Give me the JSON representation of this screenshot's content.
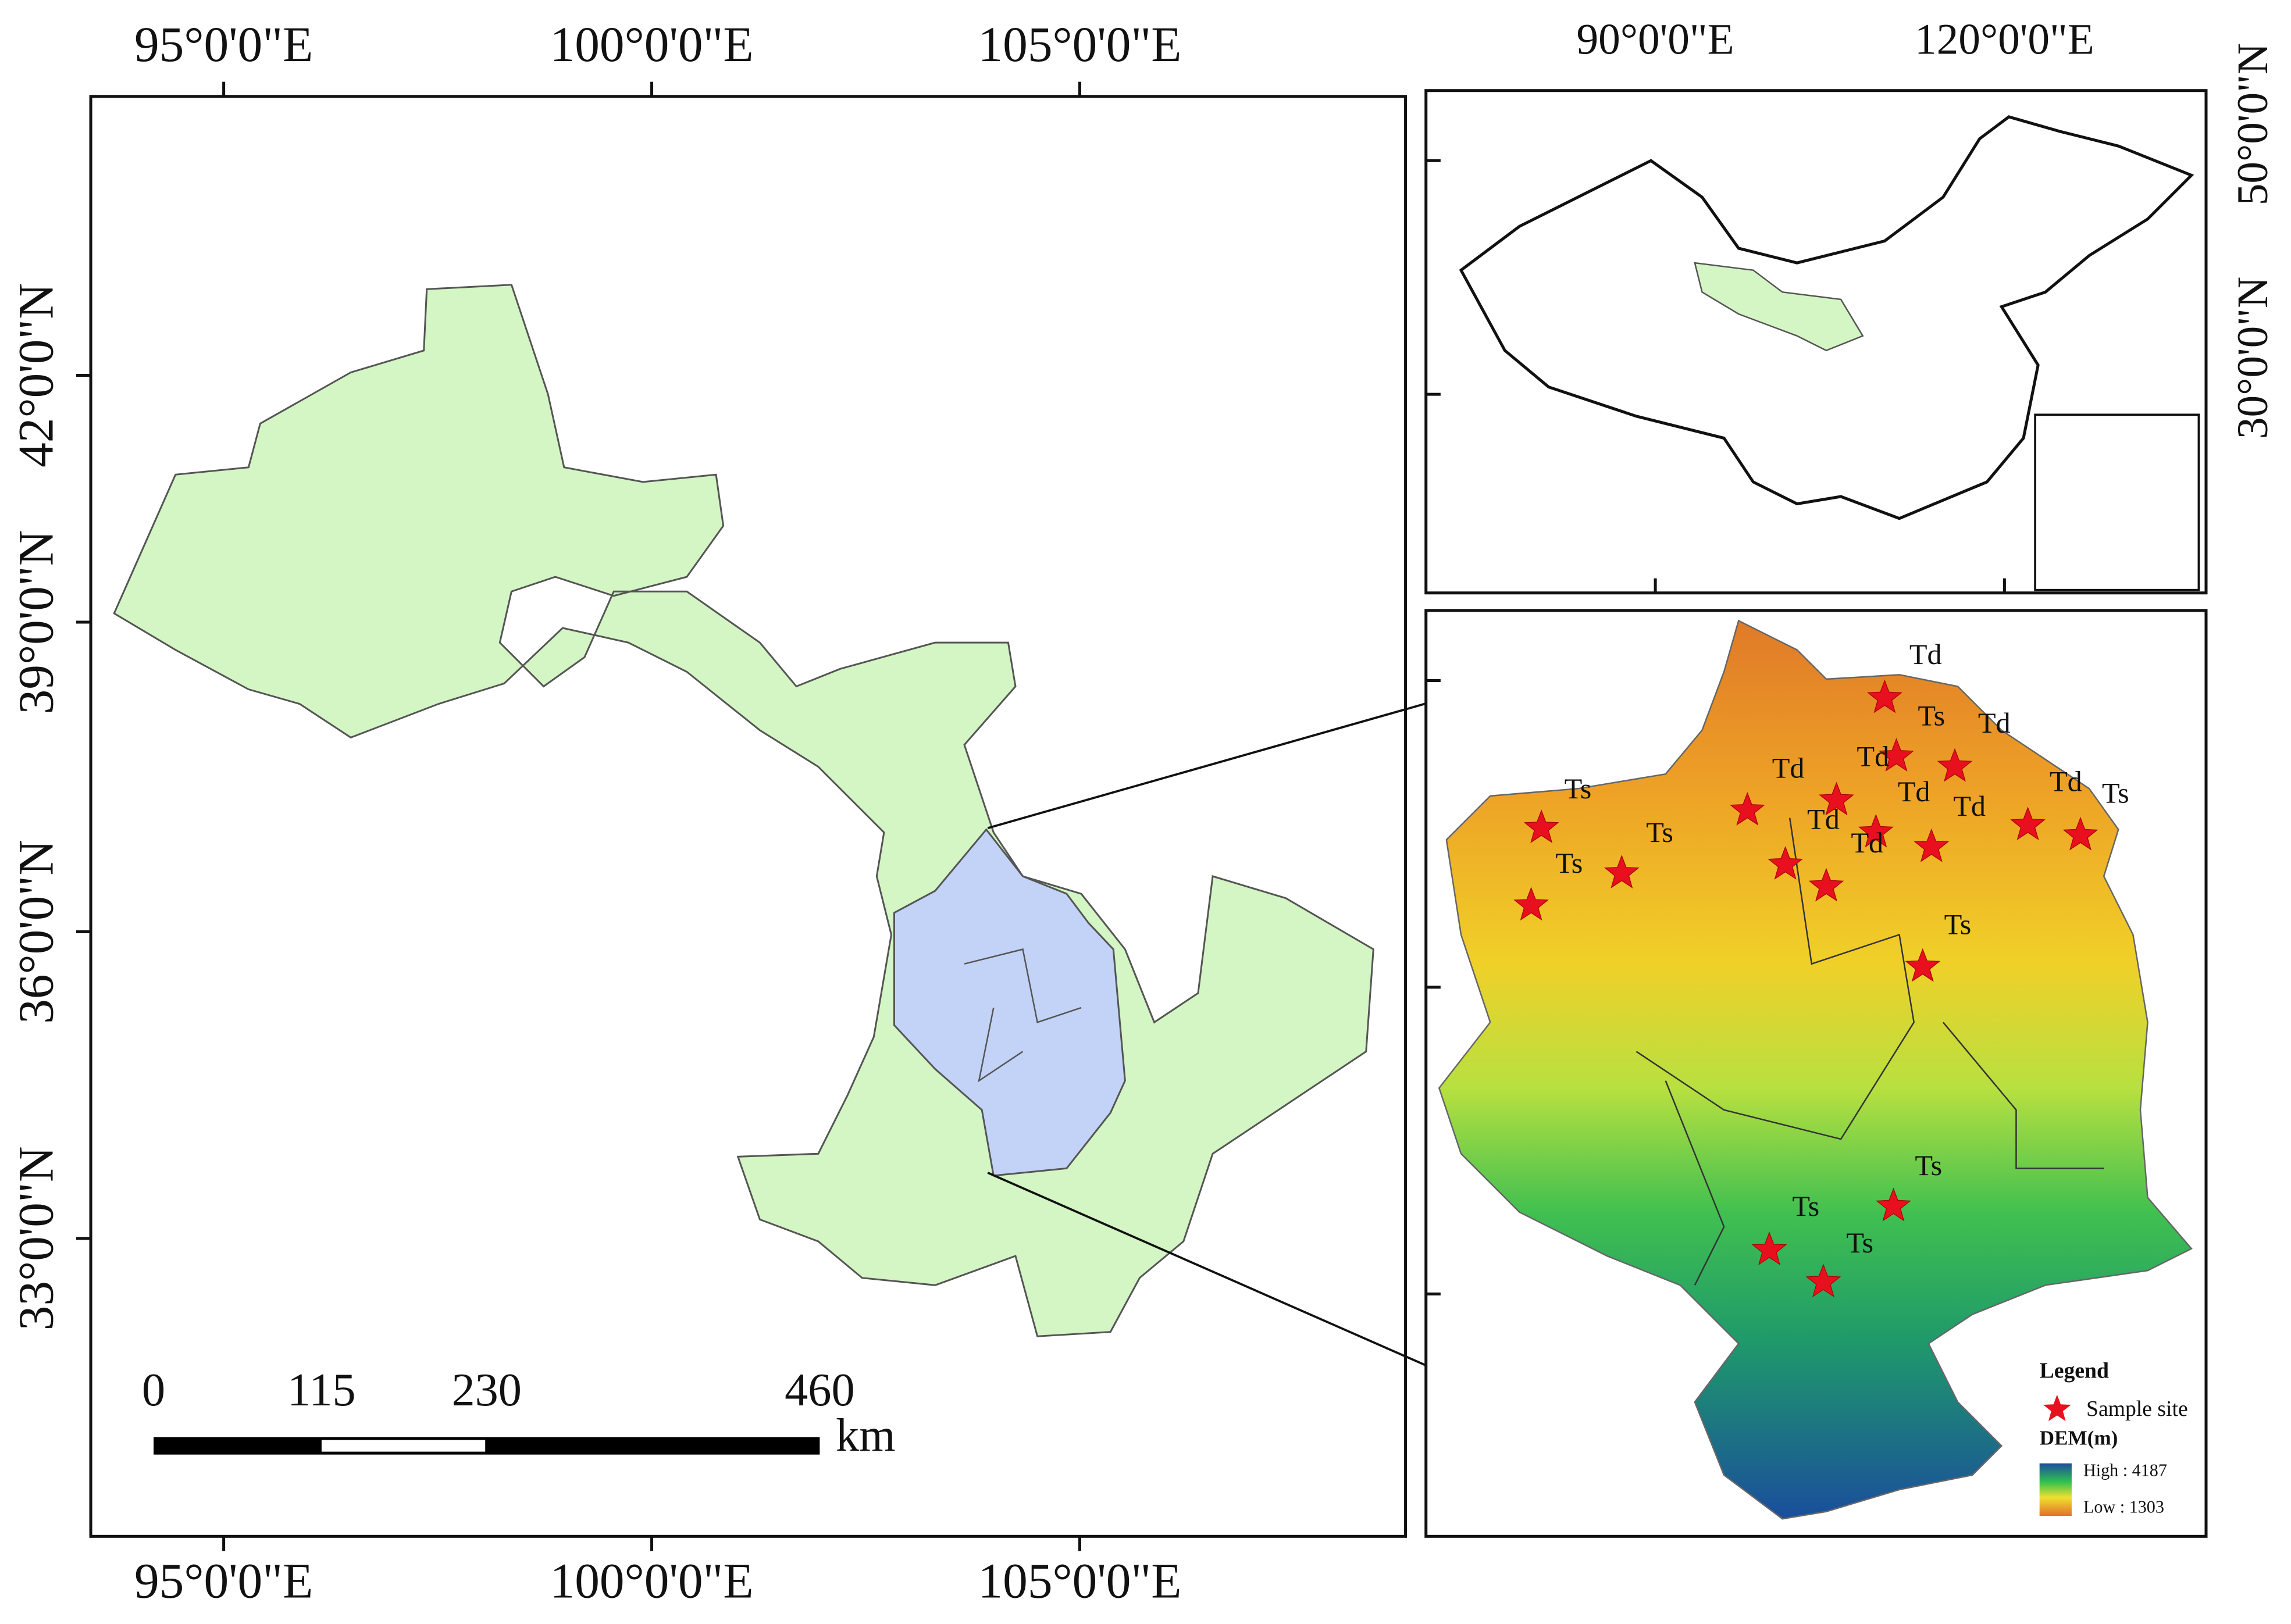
{
  "main_map": {
    "top_labels": [
      "95°0'0\"E",
      "100°0'0\"E",
      "105°0'0\"E"
    ],
    "bottom_labels": [
      "95°0'0\"E",
      "100°0'0\"E",
      "105°0'0\"E"
    ],
    "left_labels": [
      "42°0'0\"N",
      "39°0'0\"N",
      "36°0'0\"N",
      "33°0'0\"N"
    ]
  },
  "scale_bar": {
    "ticks": [
      "0",
      "115",
      "230",
      "460"
    ],
    "unit": "km"
  },
  "inset_map": {
    "top_labels": [
      "90°0'0\"E",
      "120°0'0\"E"
    ],
    "right_labels": [
      "50°0'0\"N",
      "30°0'0\"N"
    ]
  },
  "dem_map": {
    "site_labels": [
      "Td",
      "Ts",
      "Td",
      "Td",
      "Td",
      "Ts",
      "Td",
      "Td",
      "Td",
      "Ts",
      "Td",
      "Td",
      "Ts",
      "Ts",
      "Ts",
      "Ts",
      "Ts",
      "Ts"
    ],
    "legend": {
      "title": "Legend",
      "marker_label": "Sample site",
      "ramp_title": "DEM(m)",
      "high": "High : 4187",
      "low": "Low : 1303"
    }
  }
}
